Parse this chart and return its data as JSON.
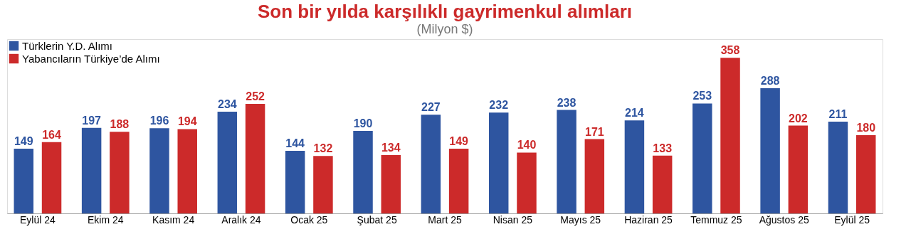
{
  "chart_data": {
    "type": "bar",
    "title": "Son bir yılda karşılıklı gayrimenkul alımları",
    "subtitle": "(Milyon $)",
    "categories": [
      "Eylül 24",
      "Ekim 24",
      "Kasım 24",
      "Aralık 24",
      "Ocak 25",
      "Şubat 25",
      "Mart 25",
      "Nisan 25",
      "Mayıs 25",
      "Haziran 25",
      "Temmuz 25",
      "Ağustos 25",
      "Eylül 25"
    ],
    "series": [
      {
        "name": "Türklerin Y.D. Alımı",
        "color": "#2e55a0",
        "values": [
          149,
          197,
          196,
          234,
          144,
          190,
          227,
          232,
          238,
          214,
          253,
          288,
          211
        ]
      },
      {
        "name": "Yabancıların Türkiye’de Alımı",
        "color": "#cc2a2a",
        "values": [
          164,
          188,
          194,
          252,
          132,
          134,
          149,
          140,
          171,
          133,
          358,
          202,
          180
        ]
      }
    ],
    "data_labels": true,
    "legend": "top left",
    "grid": false
  }
}
